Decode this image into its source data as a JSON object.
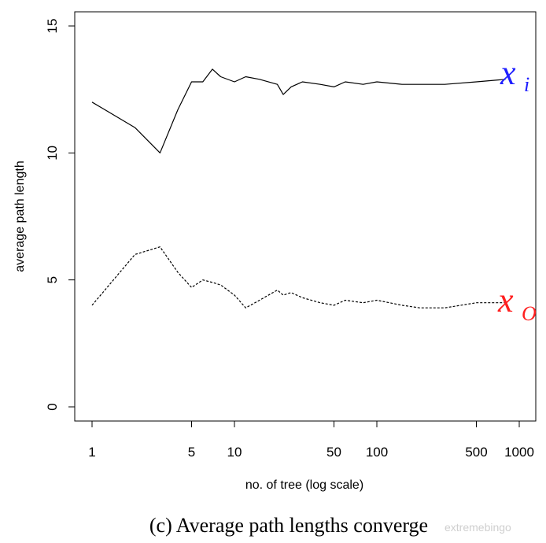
{
  "chart_data": {
    "type": "line",
    "xlabel": "no. of tree (log scale)",
    "ylabel": "average path length",
    "x_scale": "log",
    "xlim": [
      1,
      1000
    ],
    "ylim": [
      0,
      15
    ],
    "x_ticks": [
      1,
      5,
      10,
      50,
      100,
      500,
      1000
    ],
    "x_tick_labels": [
      "1",
      "5",
      "10",
      "50",
      "100",
      "500",
      "1000"
    ],
    "y_ticks": [
      0,
      5,
      10,
      15
    ],
    "y_tick_labels": [
      "0",
      "5",
      "10",
      "15"
    ],
    "grid": false,
    "series": [
      {
        "name": "x i",
        "style": "solid",
        "color": "#000000",
        "label_color": "#1f1fff",
        "x": [
          1,
          2,
          3,
          4,
          5,
          6,
          7,
          8,
          10,
          12,
          15,
          20,
          22,
          25,
          30,
          40,
          50,
          60,
          80,
          100,
          150,
          200,
          300,
          500,
          800
        ],
        "y": [
          12.0,
          11.0,
          10.0,
          11.7,
          12.8,
          12.8,
          13.3,
          13.0,
          12.8,
          13.0,
          12.9,
          12.7,
          12.3,
          12.6,
          12.8,
          12.7,
          12.6,
          12.8,
          12.7,
          12.8,
          12.7,
          12.7,
          12.7,
          12.8,
          12.9
        ]
      },
      {
        "name": "x o",
        "style": "dashed",
        "color": "#000000",
        "label_color": "#ff1f1f",
        "x": [
          1,
          2,
          3,
          4,
          5,
          6,
          7,
          8,
          10,
          12,
          15,
          20,
          22,
          25,
          30,
          40,
          50,
          60,
          80,
          100,
          150,
          200,
          300,
          500,
          800
        ],
        "y": [
          4.0,
          6.0,
          6.3,
          5.3,
          4.7,
          5.0,
          4.9,
          4.8,
          4.4,
          3.9,
          4.2,
          4.6,
          4.4,
          4.5,
          4.3,
          4.1,
          4.0,
          4.2,
          4.1,
          4.2,
          4.0,
          3.9,
          3.9,
          4.1,
          4.1
        ]
      }
    ]
  },
  "series_labels": {
    "xi_main": "x",
    "xi_sub": "i",
    "xo_main": "x",
    "xo_sub": "O"
  },
  "caption": "(c) Average path lengths converge",
  "watermark": "extremebingo"
}
